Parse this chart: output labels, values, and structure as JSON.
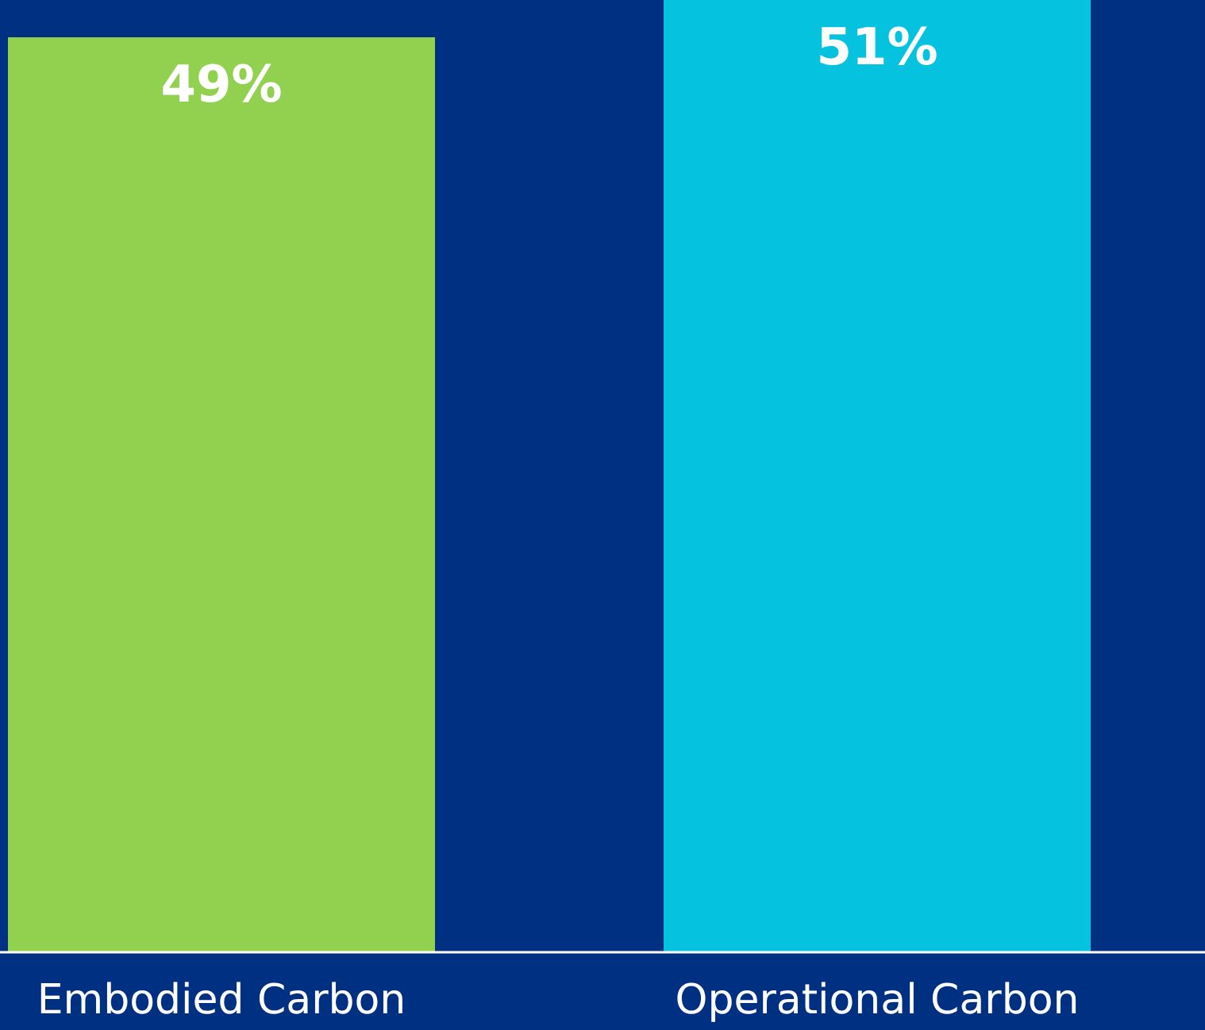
{
  "chart_data": {
    "type": "bar",
    "categories": [
      "Embodied Carbon",
      "Operational Carbon"
    ],
    "values": [
      49,
      51
    ],
    "colors": [
      "#92d050",
      "#05c3de"
    ],
    "value_labels": [
      "49%",
      "51%"
    ]
  }
}
